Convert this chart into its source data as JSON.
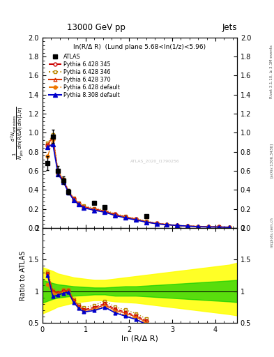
{
  "title_top": "13000 GeV pp",
  "title_right": "Jets",
  "annotation": "ln(R/Δ R)  (Lund plane 5.68<ln(1/z)<5.96)",
  "watermark": "ATLAS_2020_I1790256",
  "rivet_label": "Rivet 3.1.10, ≥ 3.1M events",
  "arxiv_label": "[arXiv:1306.3436]",
  "mcplots_label": "mcplots.cern.ch",
  "xlabel": "ln (R/Δ R)",
  "ylabel_main": "$\\frac{1}{N_\\mathrm{jets}}\\frac{d^2 N_\\mathrm{emissions}}{d\\ln(R/\\Delta R)\\,d\\ln(1/z)}$",
  "ylabel_ratio": "Ratio to ATLAS",
  "x_data": [
    0.12,
    0.24,
    0.36,
    0.48,
    0.6,
    0.72,
    0.84,
    0.96,
    1.2,
    1.44,
    1.68,
    1.92,
    2.16,
    2.4,
    2.64,
    2.88,
    3.12,
    3.36,
    3.6,
    3.84,
    4.08,
    4.32
  ],
  "atlas_y": [
    0.68,
    0.96,
    0.6,
    0.5,
    0.38,
    null,
    null,
    null,
    0.265,
    0.22,
    null,
    null,
    null,
    0.125,
    null,
    null,
    null,
    null,
    null,
    null,
    null,
    null
  ],
  "atlas_yerr": [
    0.07,
    0.07,
    0.05,
    0.04,
    0.03,
    null,
    null,
    null,
    0.015,
    0.012,
    null,
    null,
    null,
    0.008,
    null,
    null,
    null,
    null,
    null,
    null,
    null,
    null
  ],
  "p6_345_y": [
    0.87,
    0.96,
    0.585,
    0.505,
    0.385,
    0.305,
    0.255,
    0.222,
    0.198,
    0.178,
    0.142,
    0.116,
    0.092,
    0.067,
    0.047,
    0.036,
    0.026,
    0.02,
    0.016,
    0.013,
    0.01,
    0.009
  ],
  "p6_346_y": [
    0.89,
    0.98,
    0.595,
    0.515,
    0.393,
    0.312,
    0.262,
    0.232,
    0.207,
    0.187,
    0.148,
    0.122,
    0.097,
    0.071,
    0.05,
    0.038,
    0.028,
    0.022,
    0.017,
    0.014,
    0.011,
    0.009
  ],
  "p6_370_y": [
    0.87,
    0.955,
    0.582,
    0.502,
    0.387,
    0.307,
    0.257,
    0.217,
    0.193,
    0.173,
    0.138,
    0.113,
    0.089,
    0.065,
    0.046,
    0.035,
    0.025,
    0.019,
    0.015,
    0.012,
    0.01,
    0.008
  ],
  "p6_def_y": [
    0.75,
    0.93,
    0.57,
    0.49,
    0.375,
    0.295,
    0.245,
    0.21,
    0.188,
    0.168,
    0.133,
    0.108,
    0.086,
    0.062,
    0.043,
    0.033,
    0.023,
    0.018,
    0.014,
    0.011,
    0.009,
    0.007
  ],
  "p8_def_y": [
    0.85,
    0.88,
    0.565,
    0.485,
    0.375,
    0.295,
    0.245,
    0.21,
    0.185,
    0.165,
    0.13,
    0.105,
    0.083,
    0.06,
    0.043,
    0.033,
    0.025,
    0.019,
    0.012,
    0.01,
    0.009,
    0.005
  ],
  "color_p6_345": "#cc0000",
  "color_p6_346": "#bb8800",
  "color_p6_370": "#dd3300",
  "color_p6_def": "#ee7700",
  "color_p8_def": "#0000cc",
  "color_atlas": "#000000",
  "ylim_main": [
    0.0,
    2.0
  ],
  "ylim_ratio": [
    0.5,
    2.0
  ],
  "xlim": [
    0.0,
    4.5
  ],
  "yticks_main": [
    0.0,
    0.2,
    0.4,
    0.6,
    0.8,
    1.0,
    1.2,
    1.4,
    1.6,
    1.8,
    2.0
  ],
  "yticks_ratio": [
    0.5,
    1.0,
    1.5,
    2.0
  ],
  "xticks": [
    0,
    1,
    2,
    3,
    4
  ],
  "green_band_x": [
    0.0,
    0.24,
    0.36,
    0.6,
    0.72,
    0.96,
    1.2,
    1.44,
    1.68,
    1.92,
    2.16,
    2.4,
    2.64,
    2.88,
    3.12,
    3.36,
    3.6,
    3.84,
    4.08,
    4.32,
    4.5
  ],
  "green_band_lo": [
    0.82,
    0.88,
    0.9,
    0.92,
    0.93,
    0.94,
    0.95,
    0.95,
    0.93,
    0.93,
    0.93,
    0.92,
    0.91,
    0.9,
    0.89,
    0.88,
    0.87,
    0.86,
    0.85,
    0.84,
    0.83
  ],
  "green_band_hi": [
    1.18,
    1.13,
    1.11,
    1.09,
    1.08,
    1.07,
    1.06,
    1.06,
    1.07,
    1.08,
    1.08,
    1.09,
    1.1,
    1.11,
    1.12,
    1.13,
    1.14,
    1.15,
    1.16,
    1.17,
    1.18
  ],
  "yellow_band_x": [
    0.0,
    0.24,
    0.36,
    0.6,
    0.72,
    0.96,
    1.2,
    1.44,
    1.68,
    1.92,
    2.16,
    2.4,
    2.64,
    2.88,
    3.12,
    3.36,
    3.6,
    3.84,
    4.08,
    4.32,
    4.5
  ],
  "yellow_band_lo": [
    0.65,
    0.72,
    0.76,
    0.8,
    0.82,
    0.84,
    0.86,
    0.86,
    0.84,
    0.83,
    0.82,
    0.8,
    0.78,
    0.76,
    0.74,
    0.72,
    0.7,
    0.68,
    0.66,
    0.64,
    0.62
  ],
  "yellow_band_hi": [
    1.38,
    1.32,
    1.28,
    1.24,
    1.22,
    1.2,
    1.18,
    1.18,
    1.2,
    1.22,
    1.24,
    1.26,
    1.28,
    1.3,
    1.32,
    1.34,
    1.36,
    1.38,
    1.4,
    1.42,
    1.45
  ]
}
